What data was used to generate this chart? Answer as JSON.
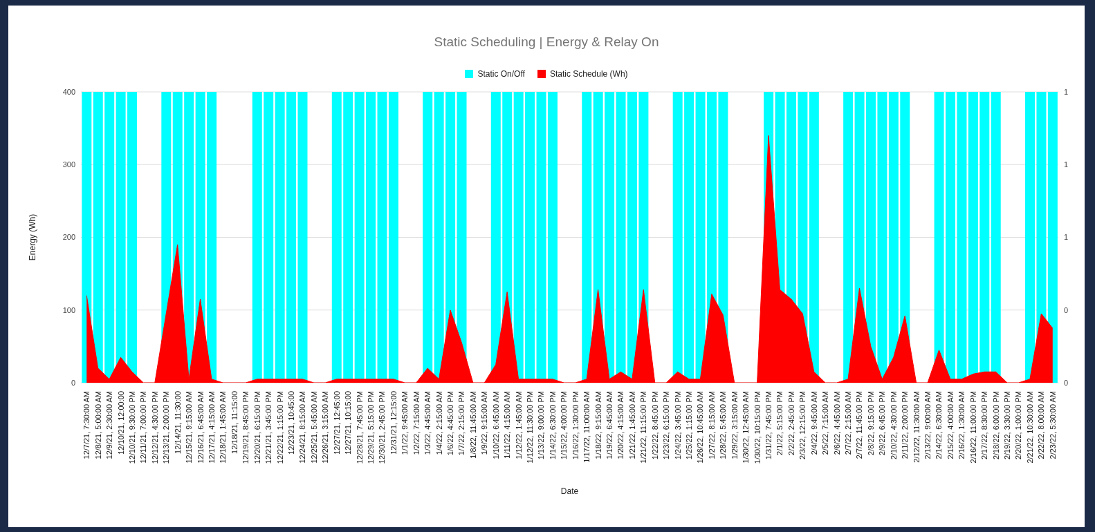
{
  "chart_data": {
    "type": "area",
    "title": "Static Scheduling | Energy & Relay On",
    "xlabel": "Date",
    "ylabel": "Energy (Wh)",
    "categories": [
      "12/7/21, 7:30:00 AM",
      "12/8/21, 5:00:00 AM",
      "12/9/21, 2:30:00 AM",
      "12/10/21, 12:00:00",
      "12/10/21, 9:30:00 PM",
      "12/11/21, 7:00:00 PM",
      "12/12/21, 4:30:00 PM",
      "12/13/21, 2:00:00 PM",
      "12/14/21, 11:30:00",
      "12/15/21, 9:15:00 AM",
      "12/16/21, 6:45:00 AM",
      "12/17/21, 4:15:00 AM",
      "12/18/21, 1:45:00 AM",
      "12/18/21, 11:15:00",
      "12/19/21, 8:45:00 PM",
      "12/20/21, 6:15:00 PM",
      "12/21/21, 3:45:00 PM",
      "12/22/21, 1:15:00 PM",
      "12/23/21, 10:45:00",
      "12/24/21, 8:15:00 AM",
      "12/25/21, 5:45:00 AM",
      "12/26/21, 3:15:00 AM",
      "12/27/21, 12:45:00",
      "12/27/21, 10:15:00",
      "12/28/21, 7:45:00 PM",
      "12/29/21, 5:15:00 PM",
      "12/30/21, 2:45:00 PM",
      "12/31/21, 12:15:00",
      "1/1/22, 9:45:00 AM",
      "1/2/22, 7:15:00 AM",
      "1/3/22, 4:45:00 AM",
      "1/4/22, 2:15:00 AM",
      "1/6/22, 4:45:00 PM",
      "1/7/22, 2:15:00 PM",
      "1/8/22, 11:45:00 AM",
      "1/9/22, 9:15:00 AM",
      "1/10/22, 6:45:00 AM",
      "1/11/22, 4:15:00 AM",
      "1/12/22, 1:45:00 AM",
      "1/12/22, 11:30:00 PM",
      "1/13/22, 9:00:00 PM",
      "1/14/22, 6:30:00 PM",
      "1/15/22, 4:00:00 PM",
      "1/16/22, 1:30:00 PM",
      "1/17/22, 11:00:00 AM",
      "1/18/22, 9:15:00 AM",
      "1/19/22, 6:45:00 AM",
      "1/20/22, 4:15:00 AM",
      "1/21/22, 1:45:00 AM",
      "1/21/22, 11:15:00 PM",
      "1/22/22, 8:45:00 PM",
      "1/23/22, 6:15:00 PM",
      "1/24/22, 3:45:00 PM",
      "1/25/22, 1:15:00 PM",
      "1/26/22, 10:45:00 AM",
      "1/27/22, 8:15:00 AM",
      "1/28/22, 5:45:00 AM",
      "1/29/22, 3:15:00 AM",
      "1/30/22, 12:45:00 AM",
      "1/30/22, 10:15:00 PM",
      "1/31/22, 7:45:00 PM",
      "2/1/22, 5:15:00 PM",
      "2/2/22, 2:45:00 PM",
      "2/3/22, 12:15:00 PM",
      "2/4/22, 9:45:00 AM",
      "2/5/22, 7:15:00 AM",
      "2/6/22, 4:45:00 AM",
      "2/7/22, 2:15:00 AM",
      "2/7/22, 11:45:00 PM",
      "2/8/22, 9:15:00 PM",
      "2/9/22, 6:45:00 PM",
      "2/10/22, 4:30:00 PM",
      "2/11/22, 2:00:00 PM",
      "2/12/22, 11:30:00 AM",
      "2/13/22, 9:00:00 AM",
      "2/14/22, 6:30:00 AM",
      "2/15/22, 4:00:00 AM",
      "2/16/22, 1:30:00 AM",
      "2/16/22, 11:00:00 PM",
      "2/17/22, 8:30:00 PM",
      "2/18/22, 6:00:00 PM",
      "2/19/22, 3:30:00 PM",
      "2/20/22, 1:00:00 PM",
      "2/21/22, 10:30:00 AM",
      "2/22/22, 8:00:00 AM",
      "2/23/22, 5:30:00 AM"
    ],
    "series": [
      {
        "name": "Static On/Off",
        "type": "bar",
        "axis": "y2",
        "color": "#00ffff",
        "values": [
          1,
          1,
          1,
          1,
          1,
          0,
          0,
          1,
          1,
          1,
          1,
          1,
          0,
          0,
          0,
          1,
          1,
          1,
          1,
          1,
          0,
          0,
          1,
          1,
          1,
          1,
          1,
          1,
          0,
          0,
          1,
          1,
          1,
          1,
          0,
          0,
          1,
          1,
          1,
          1,
          1,
          1,
          0,
          0,
          1,
          1,
          1,
          1,
          1,
          1,
          0,
          0,
          1,
          1,
          1,
          1,
          1,
          0,
          0,
          0,
          1,
          1,
          1,
          1,
          1,
          0,
          0,
          1,
          1,
          1,
          1,
          1,
          1,
          0,
          0,
          1,
          1,
          1,
          1,
          1,
          1,
          0,
          0,
          1,
          1,
          1
        ]
      },
      {
        "name": "Static Schedule (Wh)",
        "color": "#ff0000",
        "values": [
          120,
          20,
          5,
          35,
          15,
          0,
          0,
          95,
          190,
          5,
          115,
          5,
          0,
          0,
          0,
          5,
          5,
          5,
          5,
          5,
          0,
          0,
          5,
          5,
          5,
          5,
          5,
          5,
          0,
          0,
          20,
          5,
          100,
          55,
          0,
          0,
          25,
          125,
          5,
          5,
          5,
          5,
          0,
          0,
          5,
          128,
          5,
          15,
          5,
          128,
          0,
          0,
          15,
          5,
          5,
          122,
          93,
          0,
          0,
          0,
          340,
          128,
          115,
          95,
          15,
          0,
          0,
          5,
          130,
          50,
          5,
          35,
          92,
          0,
          0,
          45,
          5,
          5,
          12,
          15,
          15,
          0,
          0,
          5,
          95,
          75
        ]
      }
    ],
    "ylim": [
      0,
      400
    ],
    "yticks": [
      0,
      100,
      200,
      300,
      400
    ],
    "y2lim": [
      0,
      1
    ],
    "y2ticks": [
      {
        "value": 0,
        "label": "0"
      },
      {
        "value": 0.25,
        "label": "0"
      },
      {
        "value": 0.5,
        "label": "1"
      },
      {
        "value": 0.75,
        "label": "1"
      },
      {
        "value": 1,
        "label": "1"
      }
    ],
    "grid": "y",
    "legend": "top"
  }
}
